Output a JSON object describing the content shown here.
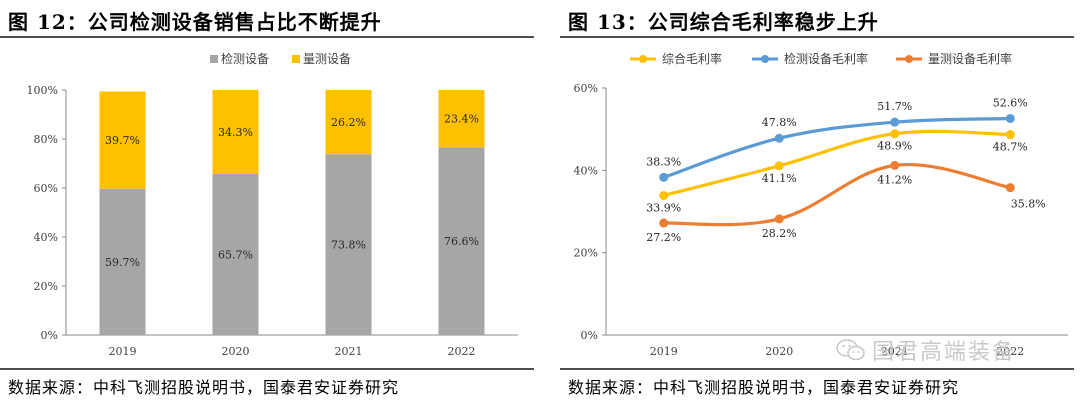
{
  "left": {
    "title": "图 12：公司检测设备销售占比不断提升",
    "source": "数据来源：中科飞测招股说明书，国泰君安证券研究"
  },
  "right": {
    "title": "图 13：公司综合毛利率稳步上升",
    "source": "数据来源：中科飞测招股说明书，国泰君安证券研究"
  },
  "watermark": {
    "text": "国君高端装备",
    "icon": "wechat-icon"
  },
  "chart_data": [
    {
      "type": "bar",
      "stacked": true,
      "percent": true,
      "categories": [
        "2019",
        "2020",
        "2021",
        "2022"
      ],
      "series": [
        {
          "name": "检测设备",
          "values": [
            59.7,
            65.7,
            73.8,
            76.6
          ],
          "labels": [
            "59.7%",
            "65.7%",
            "73.8%",
            "76.6%"
          ],
          "color": "#a6a6a6"
        },
        {
          "name": "量测设备",
          "values": [
            39.7,
            34.3,
            26.2,
            23.4
          ],
          "labels": [
            "39.7%",
            "34.3%",
            "26.2%",
            "23.4%"
          ],
          "color": "#ffc000"
        }
      ],
      "yticks": [
        "0%",
        "20%",
        "40%",
        "60%",
        "80%",
        "100%"
      ],
      "ylim": [
        0,
        100
      ],
      "legend": "top-center",
      "grid": false
    },
    {
      "type": "line",
      "smooth": true,
      "categories": [
        "2019",
        "2020",
        "2021",
        "2022"
      ],
      "series": [
        {
          "name": "综合毛利率",
          "values": [
            33.9,
            41.1,
            48.9,
            48.7
          ],
          "labels": [
            "33.9%",
            "41.1%",
            "48.9%",
            "48.7%"
          ],
          "color": "#ffc000"
        },
        {
          "name": "检测设备毛利率",
          "values": [
            38.3,
            47.8,
            51.7,
            52.6
          ],
          "labels": [
            "38.3%",
            "47.8%",
            "51.7%",
            "52.6%"
          ],
          "color": "#5b9bd5"
        },
        {
          "name": "量测设备毛利率",
          "values": [
            27.2,
            28.2,
            41.2,
            35.8
          ],
          "labels": [
            "27.2%",
            "28.2%",
            "41.2%",
            "35.8%"
          ],
          "color": "#ed7d31"
        }
      ],
      "yticks": [
        "0%",
        "20%",
        "40%",
        "60%"
      ],
      "ylim": [
        0,
        60
      ],
      "legend": "top-left",
      "grid": false
    }
  ]
}
